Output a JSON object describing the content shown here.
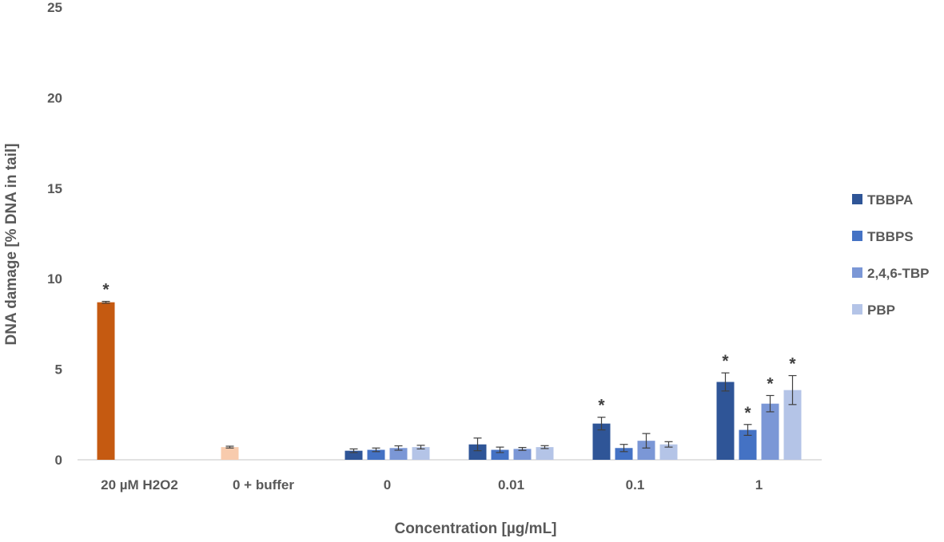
{
  "chart_data": {
    "type": "bar",
    "xlabel": "Concentration [µg/mL]",
    "ylabel": "DNA damage [% DNA in tail]",
    "ylim": [
      0,
      25
    ],
    "yticks": [
      "0",
      "5",
      "10",
      "15",
      "20",
      "25"
    ],
    "grid": false,
    "legend_position": "right",
    "controls": [
      {
        "category": "20 µM H2O2",
        "value": 8.7,
        "error": 0.05,
        "significant": true,
        "color": "#c55a11"
      },
      {
        "category": "0 + buffer",
        "value": 0.7,
        "error": 0.05,
        "significant": false,
        "color": "#f8cbad"
      }
    ],
    "categories": [
      "0",
      "0.01",
      "0.1",
      "1"
    ],
    "series": [
      {
        "name": "TBBPA",
        "color": "#2f5597",
        "values": [
          0.5,
          0.85,
          2.0,
          4.3
        ],
        "errors": [
          0.1,
          0.35,
          0.35,
          0.5
        ],
        "significant": [
          false,
          false,
          true,
          true
        ]
      },
      {
        "name": "TBBPS",
        "color": "#4472c4",
        "values": [
          0.55,
          0.55,
          0.65,
          1.65
        ],
        "errors": [
          0.1,
          0.15,
          0.2,
          0.3
        ],
        "significant": [
          false,
          false,
          false,
          true
        ]
      },
      {
        "name": "2,4,6-TBP",
        "color": "#7b97d6",
        "values": [
          0.65,
          0.6,
          1.05,
          3.1
        ],
        "errors": [
          0.12,
          0.08,
          0.4,
          0.45
        ],
        "significant": [
          false,
          false,
          false,
          true
        ]
      },
      {
        "name": "PBP",
        "color": "#b4c4e7",
        "values": [
          0.7,
          0.7,
          0.85,
          3.85
        ],
        "errors": [
          0.1,
          0.08,
          0.15,
          0.8
        ],
        "significant": [
          false,
          false,
          false,
          true
        ]
      }
    ],
    "significance_marker": "*"
  }
}
